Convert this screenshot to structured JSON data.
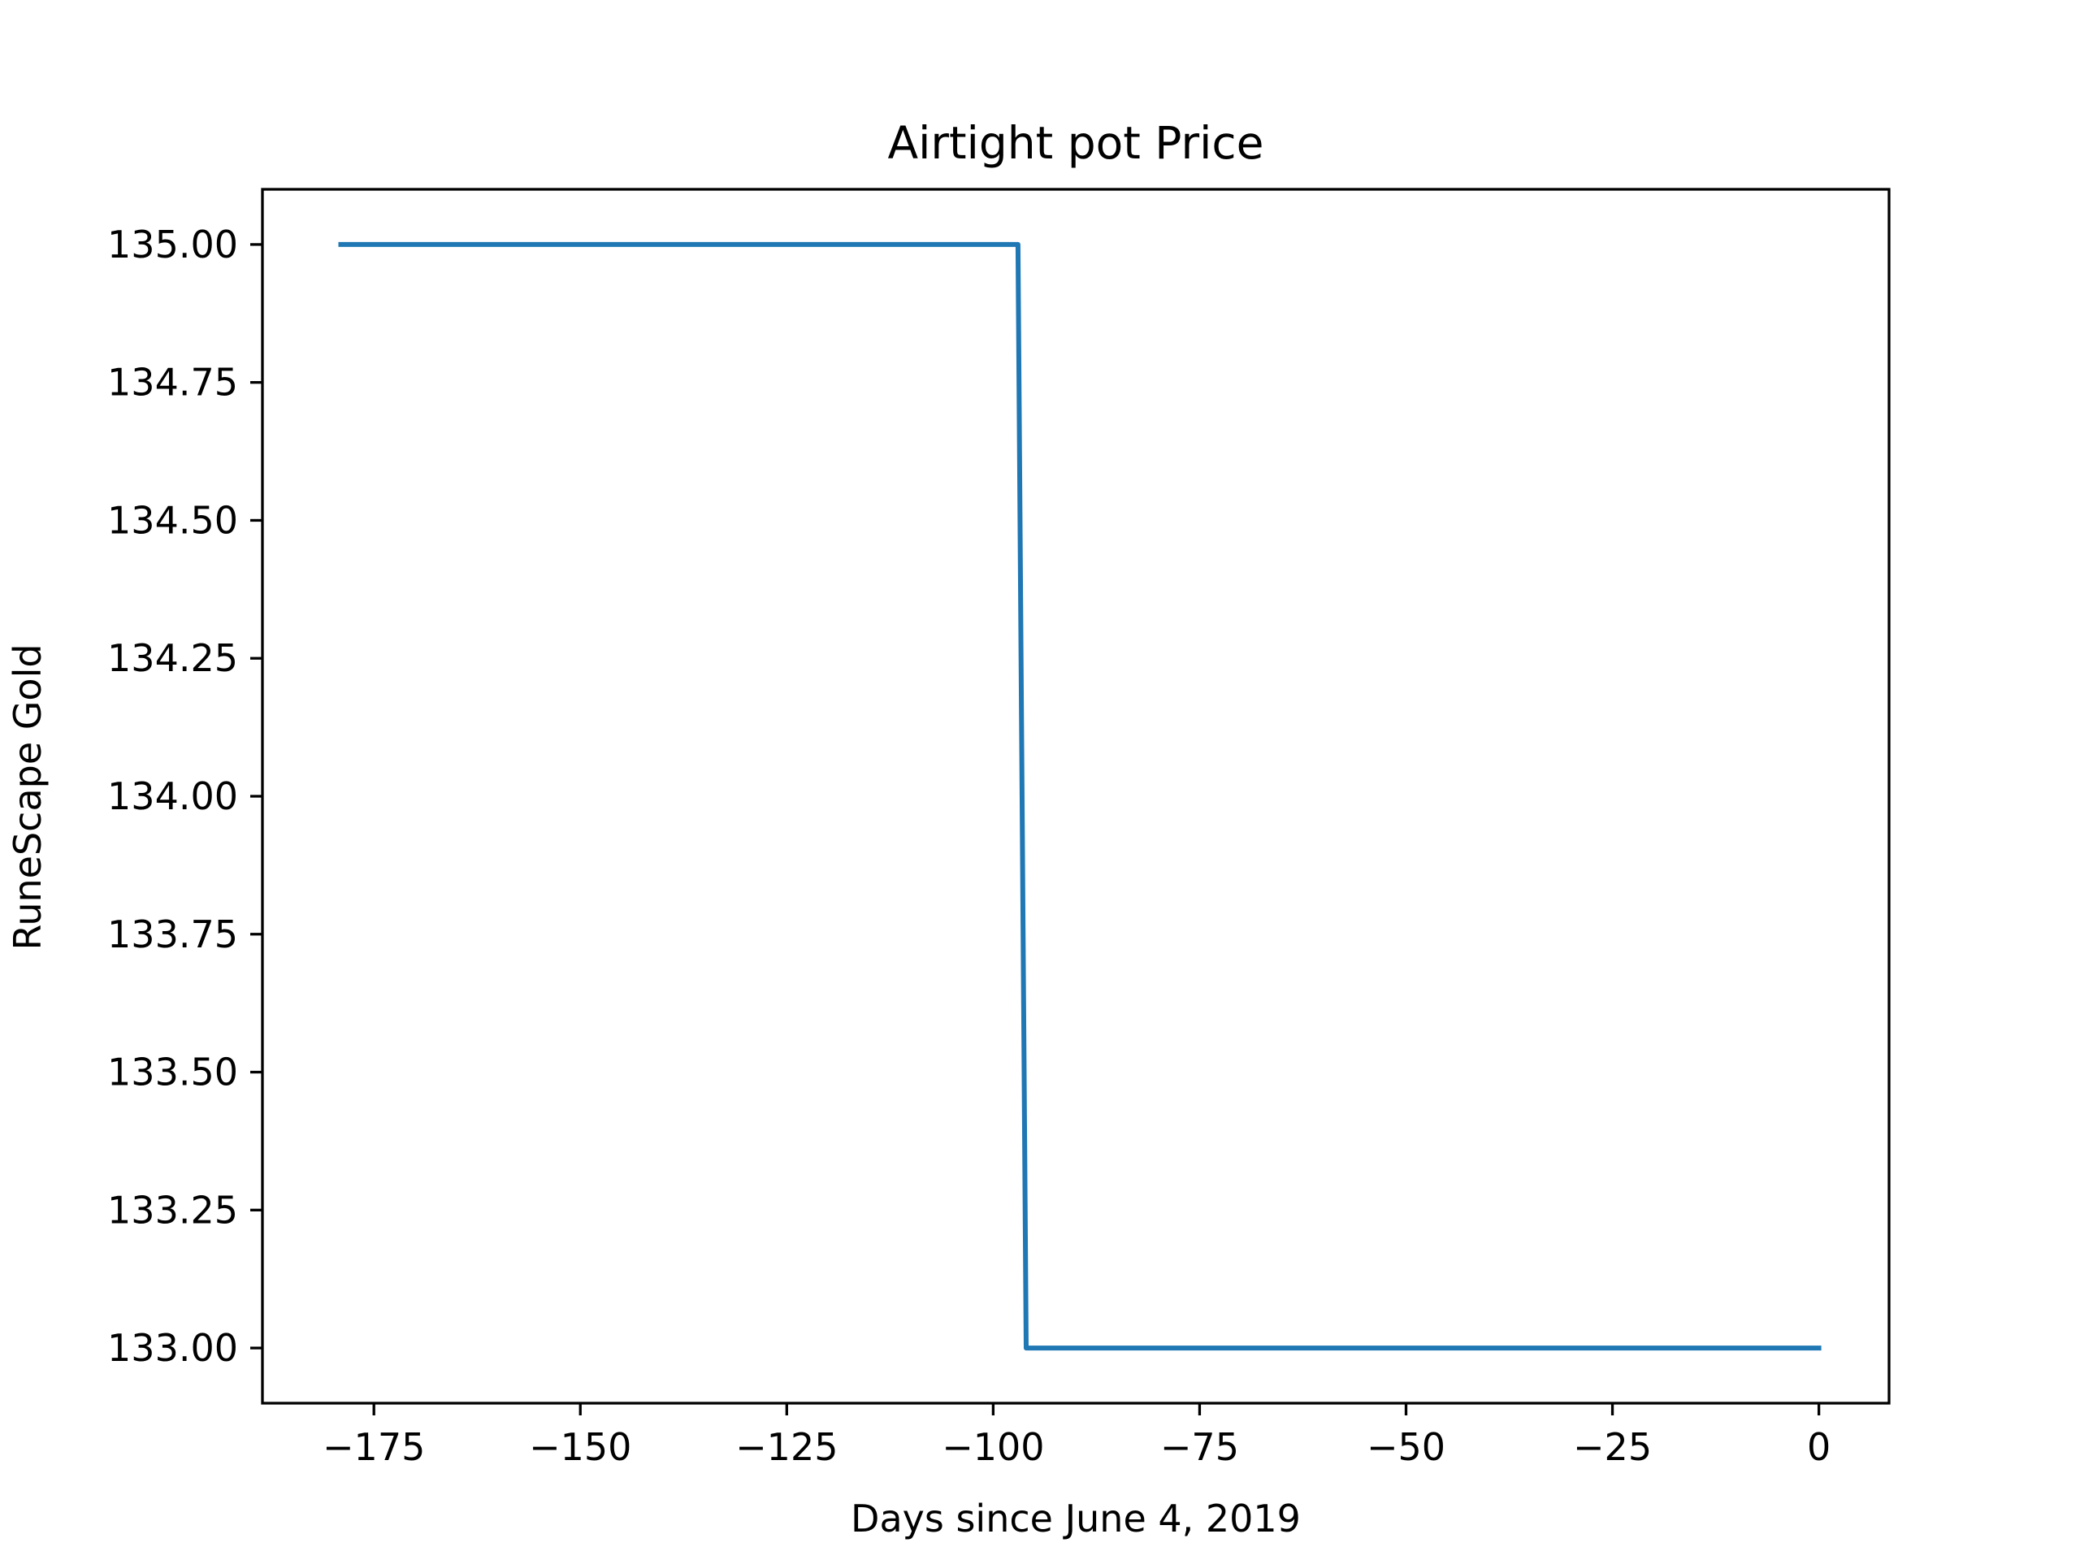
{
  "chart_data": {
    "type": "line",
    "title": "Airtight pot Price",
    "xlabel": "Days since June 4, 2019",
    "ylabel": "RuneScape Gold",
    "xlim": [
      -188.5,
      8.5
    ],
    "ylim": [
      132.9,
      135.1
    ],
    "x_ticks": [
      -175,
      -150,
      -125,
      -100,
      -75,
      -50,
      -25,
      0
    ],
    "x_tick_labels": [
      "−175",
      "−150",
      "−125",
      "−100",
      "−75",
      "−50",
      "−25",
      "0"
    ],
    "y_ticks": [
      133.0,
      133.25,
      133.5,
      133.75,
      134.0,
      134.25,
      134.5,
      134.75,
      135.0
    ],
    "y_tick_labels": [
      "133.00",
      "133.25",
      "133.50",
      "133.75",
      "134.00",
      "134.25",
      "134.50",
      "134.75",
      "135.00"
    ],
    "grid": false,
    "series": [
      {
        "color": "#1f77b4",
        "x": [
          -179,
          -97,
          -96,
          0
        ],
        "y": [
          135,
          135,
          133,
          133
        ]
      }
    ]
  }
}
